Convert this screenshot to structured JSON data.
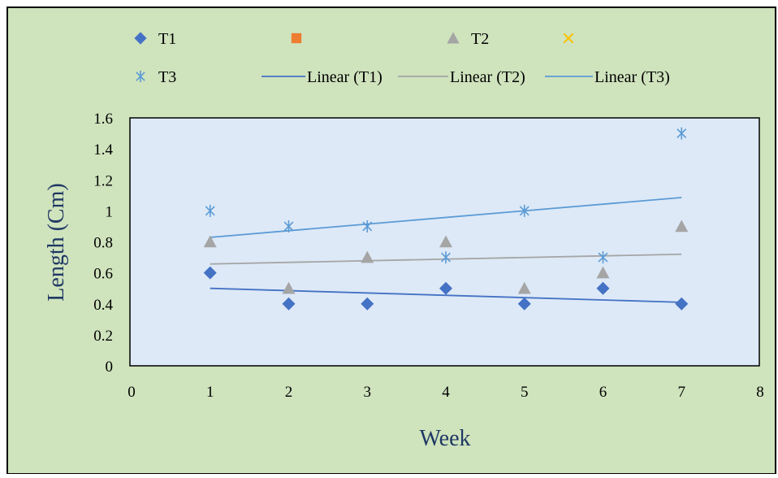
{
  "chart_data": {
    "type": "scatter",
    "xlabel": "Week",
    "ylabel": "Length (Cm)",
    "xlim": [
      0,
      8
    ],
    "ylim": [
      0,
      1.6
    ],
    "x_ticks": [
      0,
      1,
      2,
      3,
      4,
      5,
      6,
      7,
      8
    ],
    "y_ticks": [
      0,
      0.2,
      0.4,
      0.6,
      0.8,
      1,
      1.2,
      1.4,
      1.6
    ],
    "y_tick_labels": [
      "0",
      "0.2",
      "0.4",
      "0.6",
      "0.8",
      "1",
      "1.2",
      "1.4",
      "1.6"
    ],
    "legend_position": "top",
    "colors": {
      "outer_background": "#cfe3bd",
      "plot_background": "#dde9f7",
      "T1": "#4472c4",
      "series2": "#ed7d31",
      "T2": "#a5a5a5",
      "series4": "#ffc000",
      "T3": "#5b9bd5",
      "linear_T1": "#4472c4",
      "linear_T2": "#a5a5a5",
      "linear_T3": "#5b9bd5"
    },
    "series": [
      {
        "name": "T1",
        "marker": "diamond",
        "x": [
          1,
          2,
          3,
          4,
          5,
          6,
          7
        ],
        "y": [
          0.6,
          0.4,
          0.4,
          0.5,
          0.4,
          0.5,
          0.4
        ]
      },
      {
        "name": "T2",
        "marker": "triangle",
        "x": [
          1,
          2,
          3,
          4,
          5,
          6,
          7
        ],
        "y": [
          0.8,
          0.5,
          0.7,
          0.8,
          0.5,
          0.6,
          0.9
        ]
      },
      {
        "name": "T3",
        "marker": "asterisk",
        "x": [
          1,
          2,
          3,
          4,
          5,
          6,
          7
        ],
        "y": [
          1.0,
          0.9,
          0.9,
          0.7,
          1.0,
          0.7,
          1.5
        ]
      }
    ],
    "trendlines": [
      {
        "name": "Linear (T1)",
        "x": [
          1,
          7
        ],
        "y": [
          0.5,
          0.41
        ]
      },
      {
        "name": "Linear (T2)",
        "x": [
          1,
          7
        ],
        "y": [
          0.657,
          0.72
        ]
      },
      {
        "name": "Linear (T3)",
        "x": [
          1,
          7
        ],
        "y": [
          0.829,
          1.086
        ]
      }
    ],
    "legend": [
      {
        "label": "T1",
        "kind": "diamond",
        "color_key": "T1"
      },
      {
        "label": "",
        "kind": "square",
        "color_key": "series2"
      },
      {
        "label": "T2",
        "kind": "triangle",
        "color_key": "T2"
      },
      {
        "label": "",
        "kind": "cross",
        "color_key": "series4"
      },
      {
        "label": "T3",
        "kind": "asterisk",
        "color_key": "T3"
      },
      {
        "label": "Linear (T1)",
        "kind": "line",
        "color_key": "linear_T1"
      },
      {
        "label": "Linear (T2)",
        "kind": "line",
        "color_key": "linear_T2"
      },
      {
        "label": "Linear (T3)",
        "kind": "line",
        "color_key": "linear_T3"
      }
    ]
  }
}
